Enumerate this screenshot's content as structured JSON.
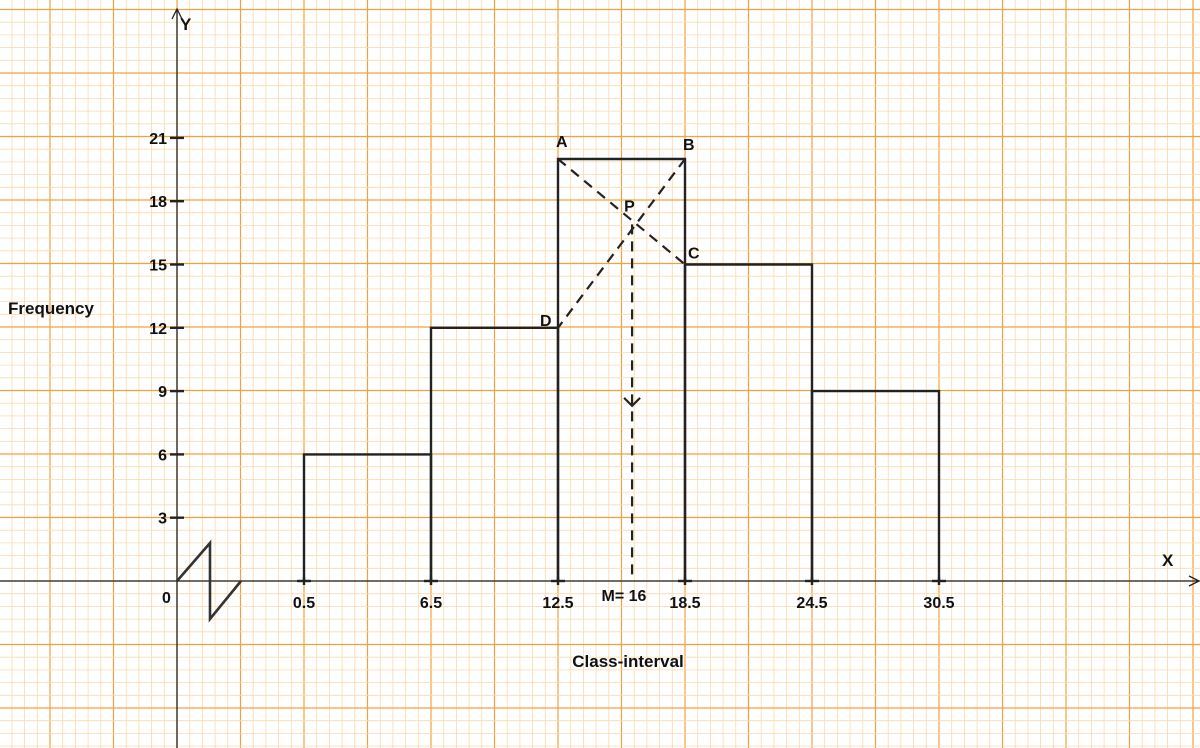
{
  "chart_data": {
    "type": "bar",
    "subtype": "histogram",
    "title": "",
    "xlabel": "Class-interval",
    "ylabel": "Frequency",
    "x_axis_name": "X",
    "y_axis_name": "Y",
    "origin_label": "0",
    "x_break": true,
    "x_ticks": [
      0.5,
      6.5,
      12.5,
      18.5,
      24.5,
      30.5
    ],
    "x_tick_labels": [
      "0.5",
      "6.5",
      "12.5",
      "18.5",
      "24.5",
      "30.5"
    ],
    "y_ticks": [
      3,
      6,
      9,
      12,
      15,
      18,
      21
    ],
    "y_tick_labels": [
      "3",
      "6",
      "9",
      "12",
      "15",
      "18",
      "21"
    ],
    "bins": [
      {
        "from": 0.5,
        "to": 6.5,
        "frequency": 6
      },
      {
        "from": 6.5,
        "to": 12.5,
        "frequency": 12
      },
      {
        "from": 12.5,
        "to": 18.5,
        "frequency": 20
      },
      {
        "from": 18.5,
        "to": 24.5,
        "frequency": 15
      },
      {
        "from": 24.5,
        "to": 30.5,
        "frequency": 9
      }
    ],
    "construction": {
      "points": [
        {
          "name": "A",
          "x": 12.5,
          "y": 20
        },
        {
          "name": "B",
          "x": 18.5,
          "y": 20
        },
        {
          "name": "C",
          "x": 18.5,
          "y": 15
        },
        {
          "name": "D",
          "x": 12.5,
          "y": 12
        },
        {
          "name": "P",
          "x": 16,
          "y": 16.9
        }
      ],
      "dashed_lines": [
        [
          "A",
          "C"
        ],
        [
          "B",
          "D"
        ]
      ],
      "mode_label": "M= 16",
      "mode_value": 16
    },
    "grid": true,
    "colors": {
      "grid_major": "#f5a040",
      "grid_minor": "#fbd9ae",
      "ink": "#222222"
    }
  }
}
